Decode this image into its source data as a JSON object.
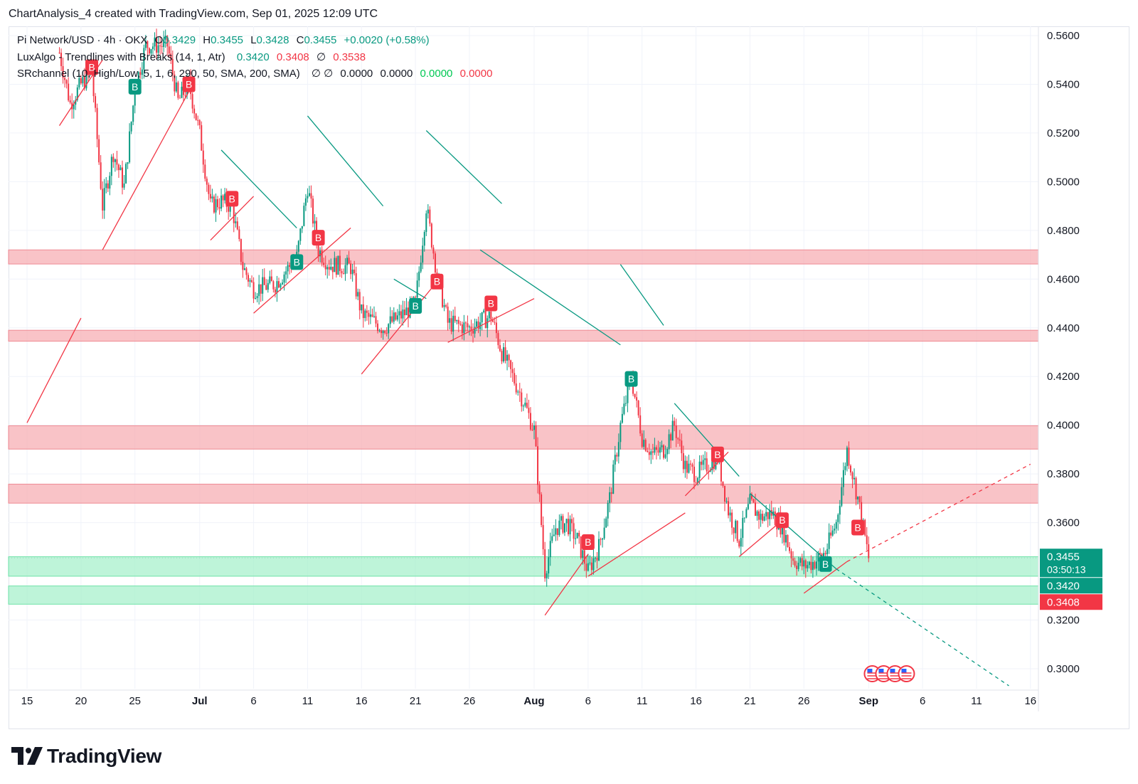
{
  "header": {
    "credit": "ChartAnalysis_4 created with TradingView.com, Sep 01, 2025 12:09 UTC"
  },
  "legend": {
    "symbol": "Pi Network/USD · 4h · OKX",
    "o_label": "O",
    "o_value": "0.3429",
    "h_label": "H",
    "h_value": "0.3455",
    "l_label": "L",
    "l_value": "0.3428",
    "c_label": "C",
    "c_value": "0.3455",
    "change": "+0.0020 (+0.58%)",
    "indicator1_name": "LuxAlgo - Trendlines with Breaks (14, 1, Atr)",
    "indicator1_v1": "0.3420",
    "indicator1_v2": "0.3408",
    "indicator1_sym": "∅",
    "indicator1_v3": "0.3538",
    "indicator2_name": "SRchannel (10, High/Low, 5, 1, 6, 290, 50, SMA, 200, SMA)",
    "indicator2_syms": "∅ ∅",
    "indicator2_v1": "0.0000",
    "indicator2_v2": "0.0000",
    "indicator2_v3": "0.0000",
    "indicator2_v4": "0.0000"
  },
  "brand": {
    "name": "TradingView"
  },
  "colors": {
    "up": "#089981",
    "down": "#f23645",
    "zone_red": "#f7a9af",
    "zone_green": "#a3f0c9",
    "trend_green": "#089981",
    "trend_red": "#f23645"
  },
  "chart_data": {
    "type": "candlestick",
    "symbol": "Pi Network/USD",
    "interval": "4h",
    "exchange": "OKX",
    "y_axis": {
      "ticks": [
        "0.5600",
        "0.5400",
        "0.5200",
        "0.5000",
        "0.4800",
        "0.4600",
        "0.4400",
        "0.4200",
        "0.4000",
        "0.3800",
        "0.3600",
        "0.3200",
        "0.3000"
      ],
      "range": [
        0.293,
        0.5625
      ]
    },
    "x_axis": {
      "ticks": [
        "15",
        "20",
        "25",
        "Jul",
        "6",
        "11",
        "16",
        "21",
        "26",
        "Aug",
        "6",
        "11",
        "16",
        "21",
        "26",
        "Sep",
        "6",
        "11",
        "16"
      ],
      "bold_ticks": [
        "Jul",
        "Aug",
        "Sep"
      ],
      "range_days": [
        "2025-06-15",
        "2025-09-16"
      ]
    },
    "price_labels": [
      {
        "value": "0.3455",
        "sub": "03:50:13",
        "kind": "last",
        "color": "#089981"
      },
      {
        "value": "0.3420",
        "kind": "trend_upper",
        "color": "#089981"
      },
      {
        "value": "0.3408",
        "kind": "trend_lower",
        "color": "#f23645"
      }
    ],
    "sr_zones": [
      {
        "top": 0.472,
        "bottom": 0.4662,
        "kind": "resistance"
      },
      {
        "top": 0.439,
        "bottom": 0.4345,
        "kind": "resistance"
      },
      {
        "top": 0.3998,
        "bottom": 0.3902,
        "kind": "resistance"
      },
      {
        "top": 0.3758,
        "bottom": 0.368,
        "kind": "resistance"
      },
      {
        "top": 0.346,
        "bottom": 0.338,
        "kind": "support"
      },
      {
        "top": 0.334,
        "bottom": 0.3265,
        "kind": "support"
      }
    ],
    "trendlines": [
      {
        "color": "red",
        "from": [
          "2025-06-15",
          0.401
        ],
        "to": [
          "2025-06-20",
          0.444
        ]
      },
      {
        "color": "red",
        "from": [
          "2025-06-18",
          0.523
        ],
        "to": [
          "2025-06-22",
          0.55
        ]
      },
      {
        "color": "red",
        "from": [
          "2025-06-22",
          0.472
        ],
        "to": [
          "2025-06-30",
          0.537
        ]
      },
      {
        "color": "green",
        "from": [
          "2025-07-03",
          0.513
        ],
        "to": [
          "2025-07-10",
          0.481
        ]
      },
      {
        "color": "red",
        "from": [
          "2025-07-02",
          0.476
        ],
        "to": [
          "2025-07-06",
          0.494
        ]
      },
      {
        "color": "green",
        "from": [
          "2025-07-11",
          0.527
        ],
        "to": [
          "2025-07-18",
          0.49
        ]
      },
      {
        "color": "red",
        "from": [
          "2025-07-06",
          0.446
        ],
        "to": [
          "2025-07-15",
          0.481
        ]
      },
      {
        "color": "green",
        "from": [
          "2025-07-19",
          0.46
        ],
        "to": [
          "2025-07-22",
          0.452
        ]
      },
      {
        "color": "red",
        "from": [
          "2025-07-16",
          0.421
        ],
        "to": [
          "2025-07-23",
          0.459
        ]
      },
      {
        "color": "green",
        "from": [
          "2025-07-22",
          0.521
        ],
        "to": [
          "2025-07-29",
          0.491
        ]
      },
      {
        "color": "red",
        "from": [
          "2025-07-24",
          0.434
        ],
        "to": [
          "2025-08-01",
          0.452
        ]
      },
      {
        "color": "green",
        "from": [
          "2025-07-27",
          0.472
        ],
        "to": [
          "2025-08-09",
          0.433
        ]
      },
      {
        "color": "green",
        "from": [
          "2025-08-09",
          0.466
        ],
        "to": [
          "2025-08-13",
          0.441
        ]
      },
      {
        "color": "red",
        "from": [
          "2025-08-02",
          0.322
        ],
        "to": [
          "2025-08-06",
          0.347
        ]
      },
      {
        "color": "red",
        "from": [
          "2025-08-06",
          0.338
        ],
        "to": [
          "2025-08-15",
          0.364
        ]
      },
      {
        "color": "green",
        "from": [
          "2025-08-14",
          0.409
        ],
        "to": [
          "2025-08-20",
          0.379
        ]
      },
      {
        "color": "red",
        "from": [
          "2025-08-15",
          0.371
        ],
        "to": [
          "2025-08-19",
          0.389
        ]
      },
      {
        "color": "green",
        "from": [
          "2025-08-21",
          0.372
        ],
        "to": [
          "2025-08-29",
          0.341
        ]
      },
      {
        "color": "red",
        "from": [
          "2025-08-20",
          0.346
        ],
        "to": [
          "2025-08-24",
          0.361
        ]
      },
      {
        "color": "red",
        "from": [
          "2025-08-26",
          0.331
        ],
        "to": [
          "2025-08-30",
          0.344
        ]
      },
      {
        "color": "red",
        "dashed": true,
        "from": [
          "2025-08-30",
          0.344
        ],
        "to": [
          "2025-09-16",
          0.384
        ]
      },
      {
        "color": "green",
        "dashed": true,
        "from": [
          "2025-08-29",
          0.341
        ],
        "to": [
          "2025-09-14",
          0.293
        ]
      }
    ],
    "break_markers": [
      {
        "date": "2025-06-21",
        "price": 0.547,
        "color": "red",
        "label": "B"
      },
      {
        "date": "2025-06-25",
        "price": 0.539,
        "color": "green",
        "label": "B"
      },
      {
        "date": "2025-06-30",
        "price": 0.54,
        "color": "red",
        "label": "B"
      },
      {
        "date": "2025-07-04",
        "price": 0.493,
        "color": "red",
        "label": "B"
      },
      {
        "date": "2025-07-10",
        "price": 0.467,
        "color": "green",
        "label": "B"
      },
      {
        "date": "2025-07-12",
        "price": 0.477,
        "color": "red",
        "label": "B"
      },
      {
        "date": "2025-07-21",
        "price": 0.449,
        "color": "green",
        "label": "B"
      },
      {
        "date": "2025-07-23",
        "price": 0.459,
        "color": "red",
        "label": "B"
      },
      {
        "date": "2025-07-28",
        "price": 0.45,
        "color": "red",
        "label": "B"
      },
      {
        "date": "2025-08-06",
        "price": 0.352,
        "color": "red",
        "label": "B"
      },
      {
        "date": "2025-08-10",
        "price": 0.419,
        "color": "green",
        "label": "B"
      },
      {
        "date": "2025-08-18",
        "price": 0.388,
        "color": "red",
        "label": "B"
      },
      {
        "date": "2025-08-24",
        "price": 0.361,
        "color": "red",
        "label": "B"
      },
      {
        "date": "2025-08-28",
        "price": 0.343,
        "color": "green",
        "label": "B"
      },
      {
        "date": "2025-08-31",
        "price": 0.358,
        "color": "red",
        "label": "B"
      }
    ],
    "price_points": [
      [
        "2025-06-18",
        0.553
      ],
      [
        "2025-06-19",
        0.532
      ],
      [
        "2025-06-20",
        0.54
      ],
      [
        "2025-06-21",
        0.545
      ],
      [
        "2025-06-22",
        0.49
      ],
      [
        "2025-06-23",
        0.512
      ],
      [
        "2025-06-24",
        0.498
      ],
      [
        "2025-06-25",
        0.538
      ],
      [
        "2025-06-26",
        0.556
      ],
      [
        "2025-06-28",
        0.556
      ],
      [
        "2025-06-29",
        0.533
      ],
      [
        "2025-06-30",
        0.54
      ],
      [
        "2025-07-01",
        0.52
      ],
      [
        "2025-07-02",
        0.49
      ],
      [
        "2025-07-03",
        0.492
      ],
      [
        "2025-07-04",
        0.49
      ],
      [
        "2025-07-05",
        0.465
      ],
      [
        "2025-07-06",
        0.456
      ],
      [
        "2025-07-08",
        0.458
      ],
      [
        "2025-07-10",
        0.469
      ],
      [
        "2025-07-11",
        0.498
      ],
      [
        "2025-07-12",
        0.472
      ],
      [
        "2025-07-13",
        0.466
      ],
      [
        "2025-07-15",
        0.465
      ],
      [
        "2025-07-16",
        0.446
      ],
      [
        "2025-07-18",
        0.44
      ],
      [
        "2025-07-20",
        0.446
      ],
      [
        "2025-07-21",
        0.45
      ],
      [
        "2025-07-22",
        0.49
      ],
      [
        "2025-07-23",
        0.462
      ],
      [
        "2025-07-24",
        0.442
      ],
      [
        "2025-07-26",
        0.44
      ],
      [
        "2025-07-28",
        0.445
      ],
      [
        "2025-07-29",
        0.43
      ],
      [
        "2025-07-31",
        0.41
      ],
      [
        "2025-08-01",
        0.398
      ],
      [
        "2025-08-02",
        0.34
      ],
      [
        "2025-08-03",
        0.358
      ],
      [
        "2025-08-04",
        0.36
      ],
      [
        "2025-08-05",
        0.353
      ],
      [
        "2025-08-06",
        0.34
      ],
      [
        "2025-08-07",
        0.35
      ],
      [
        "2025-08-08",
        0.37
      ],
      [
        "2025-08-09",
        0.4
      ],
      [
        "2025-08-10",
        0.42
      ],
      [
        "2025-08-11",
        0.395
      ],
      [
        "2025-08-12",
        0.388
      ],
      [
        "2025-08-13",
        0.39
      ],
      [
        "2025-08-14",
        0.4
      ],
      [
        "2025-08-15",
        0.383
      ],
      [
        "2025-08-16",
        0.38
      ],
      [
        "2025-08-18",
        0.387
      ],
      [
        "2025-08-19",
        0.365
      ],
      [
        "2025-08-20",
        0.353
      ],
      [
        "2025-08-21",
        0.368
      ],
      [
        "2025-08-22",
        0.362
      ],
      [
        "2025-08-23",
        0.364
      ],
      [
        "2025-08-24",
        0.358
      ],
      [
        "2025-08-25",
        0.345
      ],
      [
        "2025-08-26",
        0.342
      ],
      [
        "2025-08-27",
        0.344
      ],
      [
        "2025-08-28",
        0.348
      ],
      [
        "2025-08-29",
        0.36
      ],
      [
        "2025-08-30",
        0.39
      ],
      [
        "2025-08-31",
        0.37
      ],
      [
        "2025-09-01",
        0.3455
      ]
    ],
    "event_flags": {
      "date": "2025-09-02",
      "count": 4
    }
  }
}
